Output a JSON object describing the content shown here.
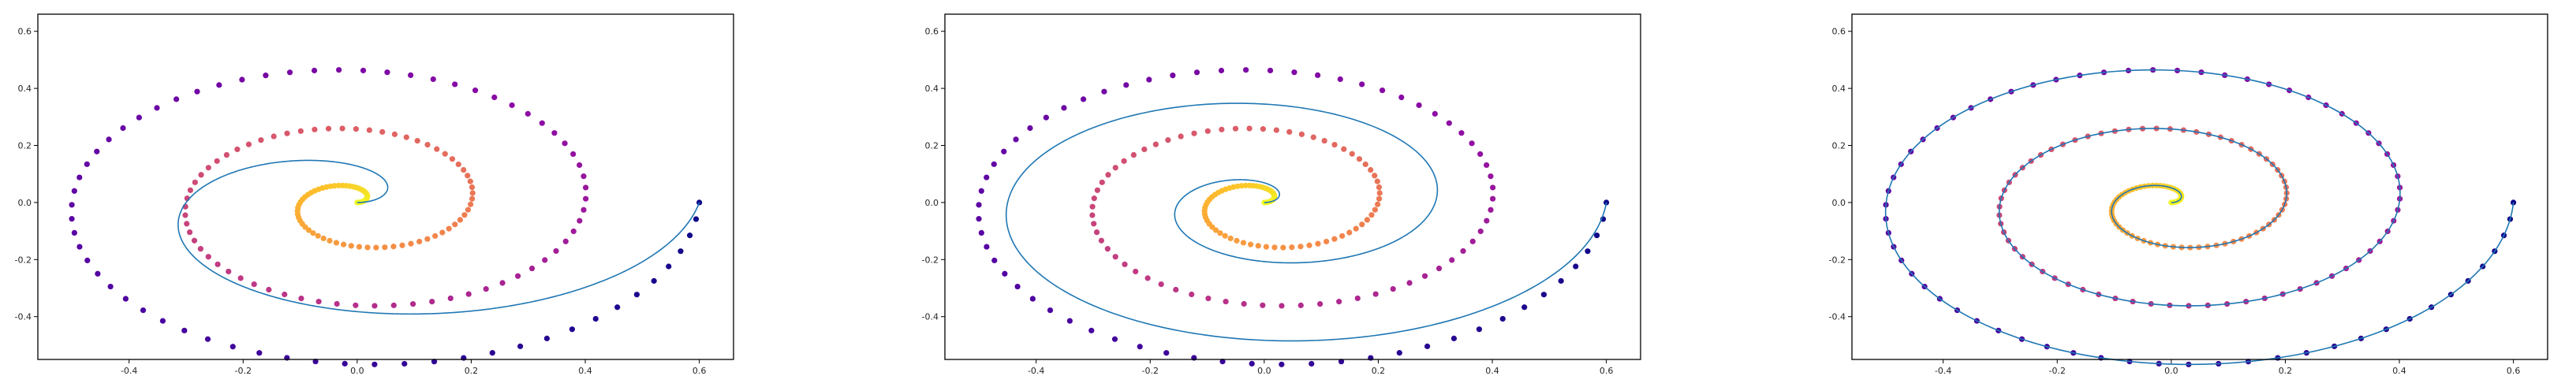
{
  "chart_data": [
    {
      "type": "scatter",
      "panel": 1,
      "xlim": [
        -0.56,
        0.66
      ],
      "ylim": [
        -0.55,
        0.66
      ],
      "xticks": [
        -0.4,
        -0.2,
        0.0,
        0.2,
        0.4,
        0.6
      ],
      "yticks": [
        -0.4,
        -0.2,
        0.0,
        0.2,
        0.4,
        0.6
      ],
      "xtick_labels": [
        "-0.4",
        "-0.2",
        "0.0",
        "0.2",
        "0.4",
        "0.6"
      ],
      "ytick_labels": [
        "-0.4",
        "-0.2",
        "0.0",
        "0.2",
        "0.4",
        "0.6"
      ],
      "grid": false,
      "points_description": "200 points on an outward spiral r = 0.6·t, colored by t with the plasma colormap (yellow at the center, dark purple at the outer arm)",
      "spiral_points": {
        "count": 200,
        "max_radius": 0.6,
        "turns": 3.0,
        "aspect_y": 1.03
      },
      "curve": {
        "color": "#1f77b4",
        "turns": 1.0,
        "max_radius": 0.6,
        "aspect_y": 0.85
      }
    },
    {
      "type": "scatter",
      "panel": 2,
      "xlim": [
        -0.56,
        0.66
      ],
      "ylim": [
        -0.55,
        0.66
      ],
      "xticks": [
        -0.4,
        -0.2,
        0.0,
        0.2,
        0.4,
        0.6
      ],
      "yticks": [
        -0.4,
        -0.2,
        0.0,
        0.2,
        0.4,
        0.6
      ],
      "xtick_labels": [
        "-0.4",
        "-0.2",
        "0.0",
        "0.2",
        "0.4",
        "0.6"
      ],
      "ytick_labels": [
        "-0.4",
        "-0.2",
        "0.0",
        "0.2",
        "0.4",
        "0.6"
      ],
      "grid": false,
      "points_description": "same spiral points as panel 1",
      "spiral_points": {
        "count": 200,
        "max_radius": 0.6,
        "turns": 3.0,
        "aspect_y": 1.03
      },
      "curve": {
        "color": "#1f77b4",
        "turns": 2.0,
        "max_radius": 0.6,
        "aspect_y": 0.92
      }
    },
    {
      "type": "scatter",
      "panel": 3,
      "xlim": [
        -0.56,
        0.66
      ],
      "ylim": [
        -0.55,
        0.66
      ],
      "xticks": [
        -0.4,
        -0.2,
        0.0,
        0.2,
        0.4,
        0.6
      ],
      "yticks": [
        -0.4,
        -0.2,
        0.0,
        0.2,
        0.4,
        0.6
      ],
      "xtick_labels": [
        "-0.4",
        "-0.2",
        "0.0",
        "0.2",
        "0.4",
        "0.6"
      ],
      "ytick_labels": [
        "-0.4",
        "-0.2",
        "0.0",
        "0.2",
        "0.4",
        "0.6"
      ],
      "grid": false,
      "points_description": "same spiral points as panel 1",
      "spiral_points": {
        "count": 200,
        "max_radius": 0.6,
        "turns": 3.0,
        "aspect_y": 1.03
      },
      "curve": {
        "color": "#1f77b4",
        "turns": 3.0,
        "max_radius": 0.6,
        "aspect_y": 1.03
      }
    }
  ],
  "colors": {
    "curve": "#1f77b4",
    "colormap": "plasma",
    "frame": "#000000",
    "tick_text": "#262626"
  }
}
